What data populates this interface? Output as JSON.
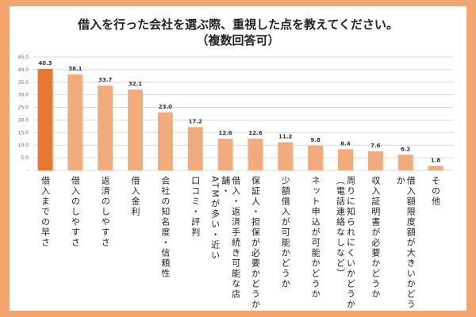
{
  "chart_data": {
    "type": "bar",
    "title": "借入を行った会社を選ぶ際、重視した点を教えてください。",
    "subtitle": "（複数回答可）",
    "xlabel": "",
    "ylabel": "",
    "ylim": [
      0,
      45
    ],
    "yticks": [
      "-",
      "5.0",
      "10.0",
      "15.0",
      "20.0",
      "25.0",
      "30.0",
      "35.0",
      "40.0",
      "45.0"
    ],
    "grid": true,
    "categories": [
      "借入までの早さ",
      "借入のしやすさ",
      "返済のしやすさ",
      "借入金利",
      "会社の知名度・信頼性",
      "口コミ・評判",
      "借入・返済手続き可能な店舗・\nATMが多い・近い",
      "保証人・担保が必要かどうか",
      "少額借入が可能かどうか",
      "ネット申込が可能かどうか",
      "周りに知られにくいかどうか\n（電話連絡なしなど）",
      "収入証明書が必要かどうか",
      "借入額限度額が大きいかどうか",
      "その他"
    ],
    "values": [
      40.3,
      38.1,
      33.7,
      32.1,
      23.0,
      17.2,
      12.6,
      12.6,
      11.2,
      9.8,
      8.4,
      7.6,
      6.2,
      1.8
    ],
    "labels": [
      "40.3",
      "38.1",
      "33.7",
      "32.1",
      "23.0",
      "17.2",
      "12.6",
      "12.6",
      "11.2",
      "9.8",
      "8.4",
      "7.6",
      "6.2",
      "1.8"
    ],
    "colors": {
      "highlight": "#e8782f",
      "bar": "#f2ab7d",
      "grid": "#d9d9d9",
      "frame": "#f3a46f"
    }
  }
}
